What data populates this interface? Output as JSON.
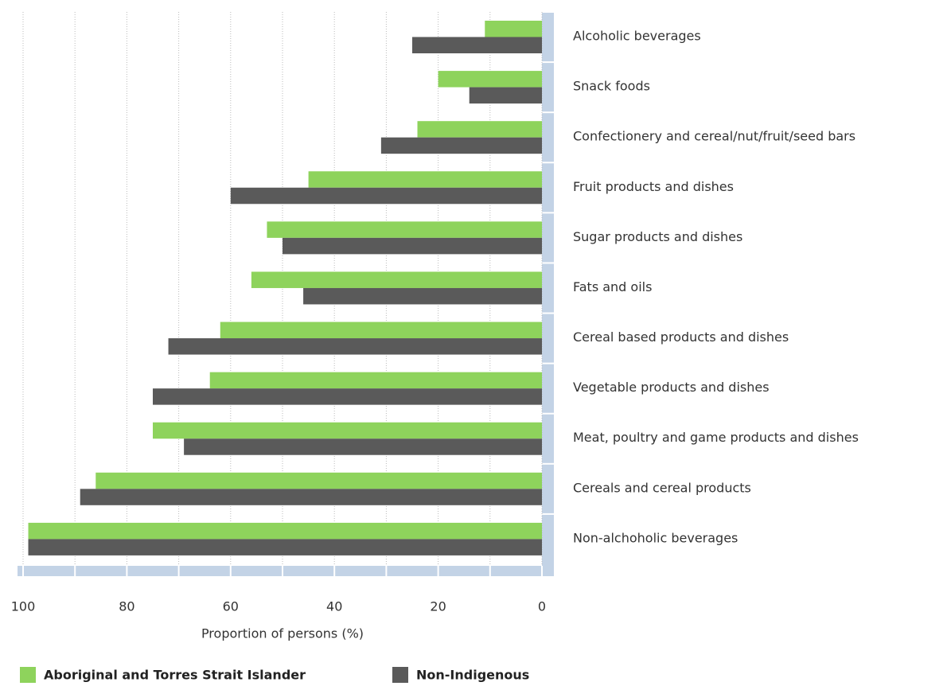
{
  "chart_data": {
    "type": "hbar",
    "categories": [
      "Alcoholic beverages",
      "Snack foods",
      "Confectionery and cereal/nut/fruit/seed bars",
      "Fruit products and dishes",
      "Sugar products and dishes",
      "Fats and oils",
      "Cereal based products and dishes",
      "Vegetable products and dishes",
      "Meat, poultry and game products and dishes",
      "Cereals and cereal products",
      "Non-alchoholic beverages"
    ],
    "series": [
      {
        "name": "Aboriginal and Torres Strait Islander",
        "color": "#8ed35c",
        "values": [
          11,
          20,
          24,
          45,
          53,
          56,
          62,
          64,
          75,
          86,
          99
        ]
      },
      {
        "name": "Non-Indigenous",
        "color": "#5a5a5a",
        "values": [
          25,
          14,
          31,
          60,
          50,
          46,
          72,
          75,
          69,
          89,
          99
        ]
      }
    ],
    "xlabel": "Proportion of persons (%)",
    "xlim": [
      100,
      0
    ],
    "xticks": [
      100,
      80,
      60,
      40,
      20,
      0
    ],
    "minor_xticks": [
      90,
      70,
      50,
      30,
      10
    ],
    "grid": true
  }
}
